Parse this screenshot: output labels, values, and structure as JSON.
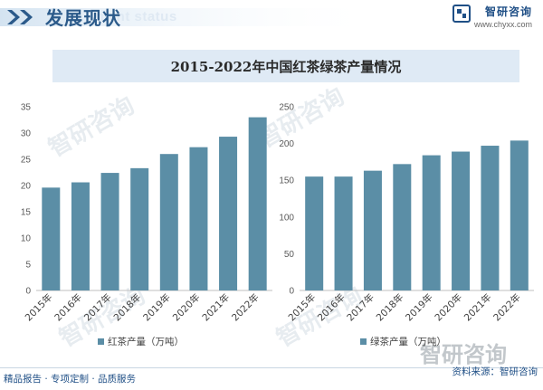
{
  "header": {
    "title": "发展现状",
    "ghost_text": "ment status",
    "brand_name": "智研咨询",
    "brand_url": "www.chyxx.com"
  },
  "watermark": "智研咨询",
  "footer": {
    "left": "精品报告 · 专项定制 · 品质服务",
    "right": "资料来源：智研咨询"
  },
  "colors": {
    "bar": "#5b8ea6",
    "axis": "#bfbfbf",
    "accent": "#2b5a8a",
    "title_bg": "#dfeaf5"
  },
  "chart_data": [
    {
      "type": "bar",
      "title": "2015-2022年中国红茶绿茶产量情况",
      "categories": [
        "2015年",
        "2016年",
        "2017年",
        "2018年",
        "2019年",
        "2020年",
        "2021年",
        "2022年"
      ],
      "series": [
        {
          "name": "红茶产量（万吨）",
          "values": [
            19.6,
            20.6,
            22.4,
            23.3,
            26.0,
            27.3,
            29.3,
            33.0
          ]
        }
      ],
      "ylim": [
        0,
        35
      ],
      "yticks": [
        0,
        5,
        10,
        15,
        20,
        25,
        30,
        35
      ],
      "grid": false,
      "legend": "bottom"
    },
    {
      "type": "bar",
      "categories": [
        "2015年",
        "2016年",
        "2017年",
        "2018年",
        "2019年",
        "2020年",
        "2021年",
        "2022年"
      ],
      "series": [
        {
          "name": "绿茶产量（万吨）",
          "values": [
            155,
            155,
            163,
            172,
            184,
            189,
            197,
            204
          ]
        }
      ],
      "ylim": [
        0,
        250
      ],
      "yticks": [
        0,
        50,
        100,
        150,
        200,
        250
      ],
      "grid": false,
      "legend": "bottom"
    }
  ]
}
